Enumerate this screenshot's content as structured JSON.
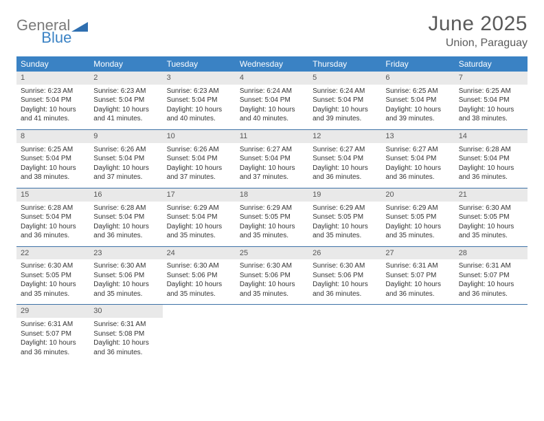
{
  "brand": {
    "general": "General",
    "blue": "Blue"
  },
  "title": "June 2025",
  "location": "Union, Paraguay",
  "colors": {
    "headerBg": "#3a82c4",
    "rowDivider": "#3a6fa5",
    "dayNumBg": "#e9e9e9"
  },
  "dayNames": [
    "Sunday",
    "Monday",
    "Tuesday",
    "Wednesday",
    "Thursday",
    "Friday",
    "Saturday"
  ],
  "weeks": [
    [
      {
        "n": "1",
        "sr": "Sunrise: 6:23 AM",
        "ss": "Sunset: 5:04 PM",
        "d1": "Daylight: 10 hours",
        "d2": "and 41 minutes."
      },
      {
        "n": "2",
        "sr": "Sunrise: 6:23 AM",
        "ss": "Sunset: 5:04 PM",
        "d1": "Daylight: 10 hours",
        "d2": "and 41 minutes."
      },
      {
        "n": "3",
        "sr": "Sunrise: 6:23 AM",
        "ss": "Sunset: 5:04 PM",
        "d1": "Daylight: 10 hours",
        "d2": "and 40 minutes."
      },
      {
        "n": "4",
        "sr": "Sunrise: 6:24 AM",
        "ss": "Sunset: 5:04 PM",
        "d1": "Daylight: 10 hours",
        "d2": "and 40 minutes."
      },
      {
        "n": "5",
        "sr": "Sunrise: 6:24 AM",
        "ss": "Sunset: 5:04 PM",
        "d1": "Daylight: 10 hours",
        "d2": "and 39 minutes."
      },
      {
        "n": "6",
        "sr": "Sunrise: 6:25 AM",
        "ss": "Sunset: 5:04 PM",
        "d1": "Daylight: 10 hours",
        "d2": "and 39 minutes."
      },
      {
        "n": "7",
        "sr": "Sunrise: 6:25 AM",
        "ss": "Sunset: 5:04 PM",
        "d1": "Daylight: 10 hours",
        "d2": "and 38 minutes."
      }
    ],
    [
      {
        "n": "8",
        "sr": "Sunrise: 6:25 AM",
        "ss": "Sunset: 5:04 PM",
        "d1": "Daylight: 10 hours",
        "d2": "and 38 minutes."
      },
      {
        "n": "9",
        "sr": "Sunrise: 6:26 AM",
        "ss": "Sunset: 5:04 PM",
        "d1": "Daylight: 10 hours",
        "d2": "and 37 minutes."
      },
      {
        "n": "10",
        "sr": "Sunrise: 6:26 AM",
        "ss": "Sunset: 5:04 PM",
        "d1": "Daylight: 10 hours",
        "d2": "and 37 minutes."
      },
      {
        "n": "11",
        "sr": "Sunrise: 6:27 AM",
        "ss": "Sunset: 5:04 PM",
        "d1": "Daylight: 10 hours",
        "d2": "and 37 minutes."
      },
      {
        "n": "12",
        "sr": "Sunrise: 6:27 AM",
        "ss": "Sunset: 5:04 PM",
        "d1": "Daylight: 10 hours",
        "d2": "and 36 minutes."
      },
      {
        "n": "13",
        "sr": "Sunrise: 6:27 AM",
        "ss": "Sunset: 5:04 PM",
        "d1": "Daylight: 10 hours",
        "d2": "and 36 minutes."
      },
      {
        "n": "14",
        "sr": "Sunrise: 6:28 AM",
        "ss": "Sunset: 5:04 PM",
        "d1": "Daylight: 10 hours",
        "d2": "and 36 minutes."
      }
    ],
    [
      {
        "n": "15",
        "sr": "Sunrise: 6:28 AM",
        "ss": "Sunset: 5:04 PM",
        "d1": "Daylight: 10 hours",
        "d2": "and 36 minutes."
      },
      {
        "n": "16",
        "sr": "Sunrise: 6:28 AM",
        "ss": "Sunset: 5:04 PM",
        "d1": "Daylight: 10 hours",
        "d2": "and 36 minutes."
      },
      {
        "n": "17",
        "sr": "Sunrise: 6:29 AM",
        "ss": "Sunset: 5:04 PM",
        "d1": "Daylight: 10 hours",
        "d2": "and 35 minutes."
      },
      {
        "n": "18",
        "sr": "Sunrise: 6:29 AM",
        "ss": "Sunset: 5:05 PM",
        "d1": "Daylight: 10 hours",
        "d2": "and 35 minutes."
      },
      {
        "n": "19",
        "sr": "Sunrise: 6:29 AM",
        "ss": "Sunset: 5:05 PM",
        "d1": "Daylight: 10 hours",
        "d2": "and 35 minutes."
      },
      {
        "n": "20",
        "sr": "Sunrise: 6:29 AM",
        "ss": "Sunset: 5:05 PM",
        "d1": "Daylight: 10 hours",
        "d2": "and 35 minutes."
      },
      {
        "n": "21",
        "sr": "Sunrise: 6:30 AM",
        "ss": "Sunset: 5:05 PM",
        "d1": "Daylight: 10 hours",
        "d2": "and 35 minutes."
      }
    ],
    [
      {
        "n": "22",
        "sr": "Sunrise: 6:30 AM",
        "ss": "Sunset: 5:05 PM",
        "d1": "Daylight: 10 hours",
        "d2": "and 35 minutes."
      },
      {
        "n": "23",
        "sr": "Sunrise: 6:30 AM",
        "ss": "Sunset: 5:06 PM",
        "d1": "Daylight: 10 hours",
        "d2": "and 35 minutes."
      },
      {
        "n": "24",
        "sr": "Sunrise: 6:30 AM",
        "ss": "Sunset: 5:06 PM",
        "d1": "Daylight: 10 hours",
        "d2": "and 35 minutes."
      },
      {
        "n": "25",
        "sr": "Sunrise: 6:30 AM",
        "ss": "Sunset: 5:06 PM",
        "d1": "Daylight: 10 hours",
        "d2": "and 35 minutes."
      },
      {
        "n": "26",
        "sr": "Sunrise: 6:30 AM",
        "ss": "Sunset: 5:06 PM",
        "d1": "Daylight: 10 hours",
        "d2": "and 36 minutes."
      },
      {
        "n": "27",
        "sr": "Sunrise: 6:31 AM",
        "ss": "Sunset: 5:07 PM",
        "d1": "Daylight: 10 hours",
        "d2": "and 36 minutes."
      },
      {
        "n": "28",
        "sr": "Sunrise: 6:31 AM",
        "ss": "Sunset: 5:07 PM",
        "d1": "Daylight: 10 hours",
        "d2": "and 36 minutes."
      }
    ],
    [
      {
        "n": "29",
        "sr": "Sunrise: 6:31 AM",
        "ss": "Sunset: 5:07 PM",
        "d1": "Daylight: 10 hours",
        "d2": "and 36 minutes."
      },
      {
        "n": "30",
        "sr": "Sunrise: 6:31 AM",
        "ss": "Sunset: 5:08 PM",
        "d1": "Daylight: 10 hours",
        "d2": "and 36 minutes."
      },
      {
        "empty": true
      },
      {
        "empty": true
      },
      {
        "empty": true
      },
      {
        "empty": true
      },
      {
        "empty": true
      }
    ]
  ]
}
